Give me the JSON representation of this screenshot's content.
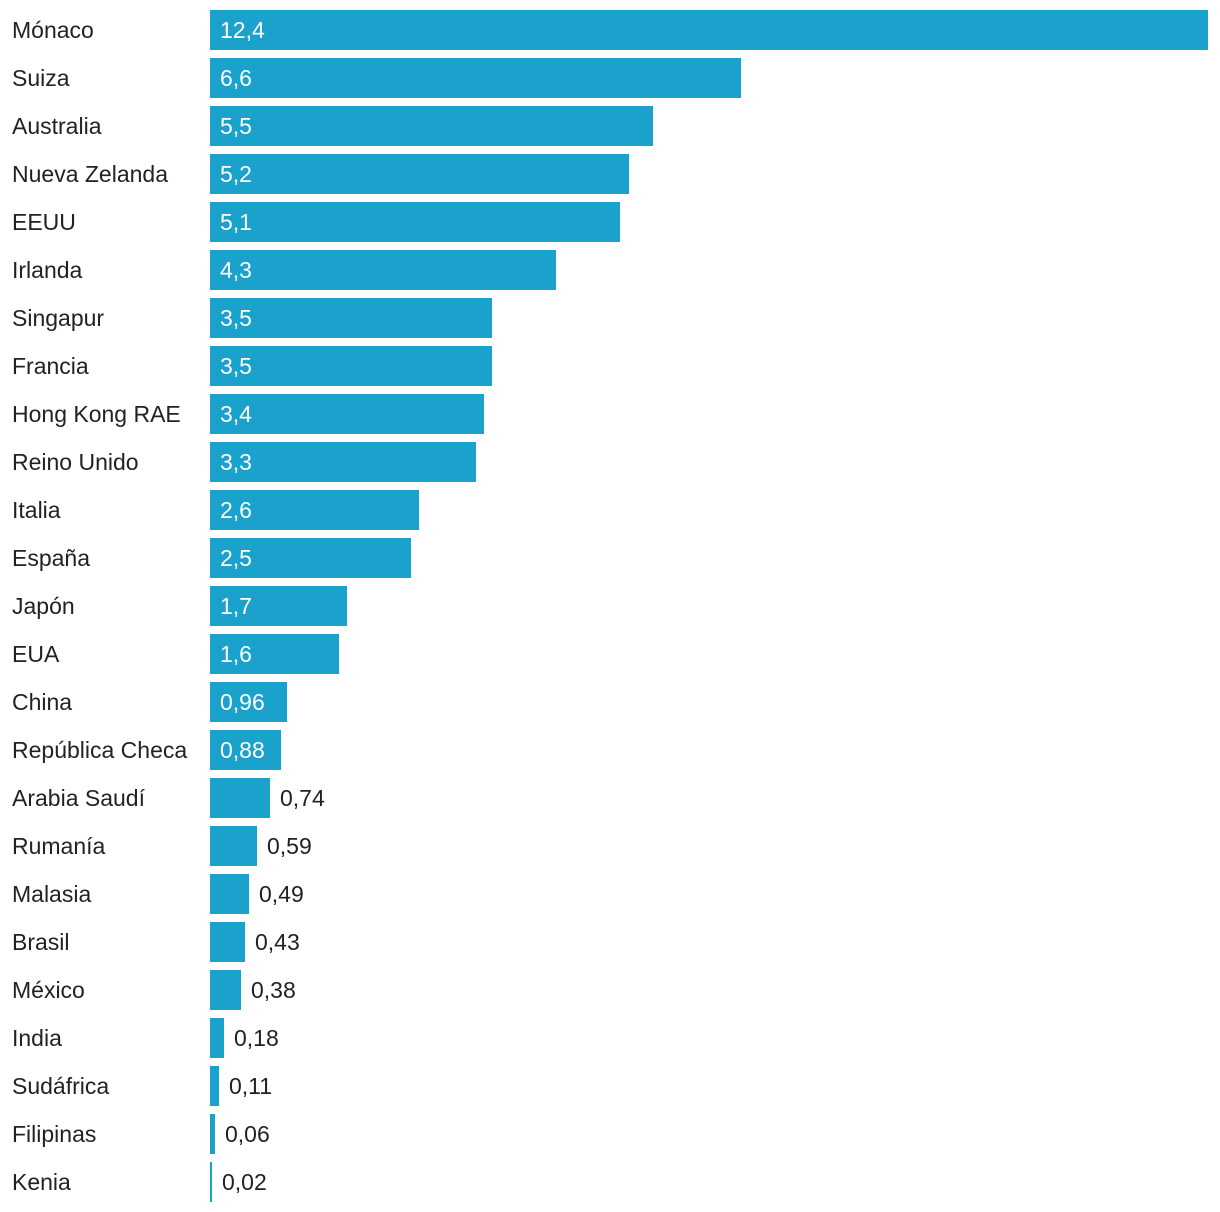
{
  "chart_data": {
    "type": "bar",
    "orientation": "horizontal",
    "bar_color": "#1aa1cc",
    "categories": [
      "Mónaco",
      "Suiza",
      "Australia",
      "Nueva Zelanda",
      "EEUU",
      "Irlanda",
      "Singapur",
      "Francia",
      "Hong Kong RAE",
      "Reino Unido",
      "Italia",
      "España",
      "Japón",
      "EUA",
      "China",
      "República Checa",
      "Arabia Saudí",
      "Rumanía",
      "Malasia",
      "Brasil",
      "México",
      "India",
      "Sudáfrica",
      "Filipinas",
      "Kenia"
    ],
    "values": [
      12.4,
      6.6,
      5.5,
      5.2,
      5.1,
      4.3,
      3.5,
      3.5,
      3.4,
      3.3,
      2.6,
      2.5,
      1.7,
      1.6,
      0.96,
      0.88,
      0.74,
      0.59,
      0.49,
      0.43,
      0.38,
      0.18,
      0.11,
      0.06,
      0.02
    ],
    "value_labels": [
      "12,4",
      "6,6",
      "5,5",
      "5,2",
      "5,1",
      "4,3",
      "3,5",
      "3,5",
      "3,4",
      "3,3",
      "2,6",
      "2,5",
      "1,7",
      "1,6",
      "0,96",
      "0,88",
      "0,74",
      "0,59",
      "0,49",
      "0,43",
      "0,38",
      "0,18",
      "0,11",
      "0,06",
      "0,02"
    ],
    "xlim": [
      0,
      12.4
    ],
    "grid": false,
    "legend": "none"
  }
}
